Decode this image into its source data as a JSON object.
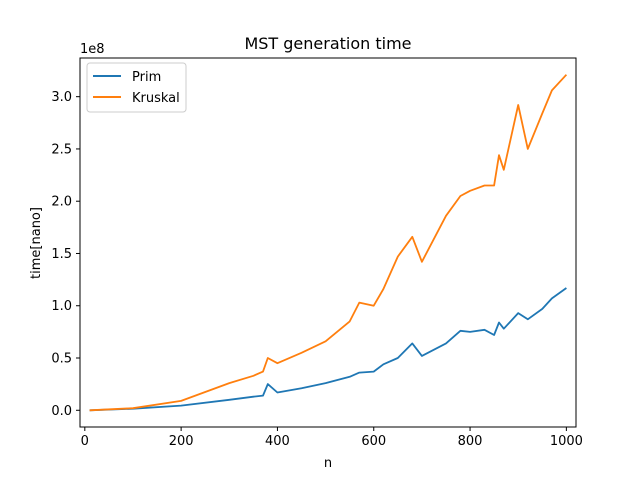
{
  "chart_data": {
    "type": "line",
    "title": "MST generation time",
    "xlabel": "n",
    "ylabel": "time[nano]",
    "y_scale_label": "1e8",
    "xlim": [
      -10,
      1020
    ],
    "ylim": [
      -0.16,
      3.37
    ],
    "y_unit": "1e8 ns",
    "xticks": [
      0,
      200,
      400,
      600,
      800,
      1000
    ],
    "yticks": [
      0.0,
      0.5,
      1.0,
      1.5,
      2.0,
      2.5,
      3.0
    ],
    "xtick_labels": [
      "0",
      "200",
      "400",
      "600",
      "800",
      "1000"
    ],
    "ytick_labels": [
      "0.0",
      "0.5",
      "1.0",
      "1.5",
      "2.0",
      "2.5",
      "3.0"
    ],
    "grid": false,
    "legend_position": "upper-left",
    "x": [
      10,
      100,
      200,
      300,
      350,
      370,
      380,
      400,
      450,
      500,
      550,
      570,
      600,
      620,
      650,
      680,
      700,
      750,
      780,
      800,
      830,
      850,
      860,
      870,
      900,
      920,
      950,
      970,
      1000
    ],
    "series": [
      {
        "name": "Prim",
        "color": "#1f77b4",
        "values": [
          0.0,
          0.015,
          0.045,
          0.1,
          0.13,
          0.14,
          0.25,
          0.17,
          0.21,
          0.26,
          0.32,
          0.36,
          0.37,
          0.44,
          0.5,
          0.64,
          0.52,
          0.64,
          0.76,
          0.75,
          0.77,
          0.72,
          0.84,
          0.78,
          0.93,
          0.87,
          0.97,
          1.07,
          1.17
        ]
      },
      {
        "name": "Kruskal",
        "color": "#ff7f0e",
        "values": [
          0.0,
          0.02,
          0.09,
          0.26,
          0.33,
          0.37,
          0.5,
          0.45,
          0.55,
          0.66,
          0.85,
          1.03,
          1.0,
          1.16,
          1.47,
          1.66,
          1.42,
          1.86,
          2.05,
          2.1,
          2.15,
          2.15,
          2.44,
          2.3,
          2.92,
          2.5,
          2.84,
          3.06,
          3.21
        ]
      }
    ]
  }
}
